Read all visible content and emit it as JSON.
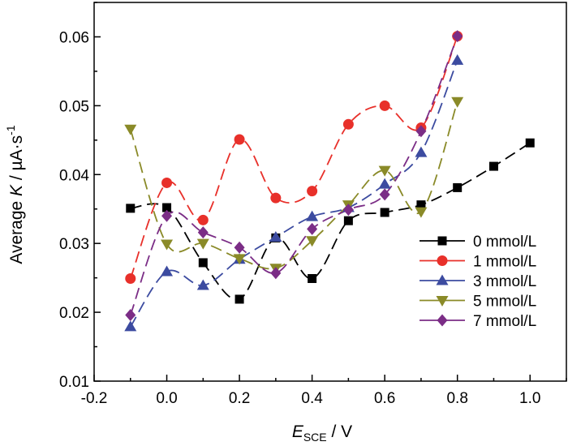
{
  "chart_data": {
    "type": "line",
    "xlabel": {
      "symbol": "E",
      "subscript": "SCE",
      "rest": " / V"
    },
    "ylabel": {
      "prefix": "Average ",
      "symbol": "K",
      "unit": " / µA·s",
      "sup": "-1"
    },
    "xlim": [
      -0.2,
      1.1
    ],
    "ylim": [
      0.01,
      0.065
    ],
    "xticks": [
      -0.2,
      0.0,
      0.2,
      0.4,
      0.6,
      0.8,
      1.0
    ],
    "xtick_labels": [
      "-0.2",
      "0.0",
      "0.2",
      "0.4",
      "0.6",
      "0.8",
      "1.0"
    ],
    "yticks": [
      0.01,
      0.02,
      0.03,
      0.04,
      0.05,
      0.06
    ],
    "ytick_labels": [
      "0.01",
      "0.02",
      "0.03",
      "0.04",
      "0.05",
      "0.06"
    ],
    "grid": false,
    "legend_position": "lower-right",
    "series": [
      {
        "name": "0 mmol/L",
        "color": "#000000",
        "marker": "square",
        "x": [
          -0.1,
          0.0,
          0.1,
          0.2,
          0.3,
          0.4,
          0.5,
          0.6,
          0.7,
          0.8,
          0.9,
          1.0
        ],
        "y": [
          0.0351,
          0.0352,
          0.0272,
          0.0219,
          0.0308,
          0.0249,
          0.0333,
          0.0345,
          0.0356,
          0.0381,
          0.0412,
          0.0446
        ]
      },
      {
        "name": "1 mmol/L",
        "color": "#e8302a",
        "marker": "circle",
        "x": [
          -0.1,
          0.0,
          0.1,
          0.2,
          0.3,
          0.4,
          0.5,
          0.6,
          0.7,
          0.8
        ],
        "y": [
          0.0249,
          0.0388,
          0.0334,
          0.0451,
          0.0366,
          0.0376,
          0.0473,
          0.05,
          0.0468,
          0.0601
        ]
      },
      {
        "name": "3 mmol/L",
        "color": "#3c4ba0",
        "marker": "triangle-up",
        "x": [
          -0.1,
          0.0,
          0.1,
          0.2,
          0.3,
          0.4,
          0.5,
          0.6,
          0.7,
          0.8
        ],
        "y": [
          0.0179,
          0.0259,
          0.0239,
          0.0277,
          0.0309,
          0.0339,
          0.0352,
          0.0386,
          0.0432,
          0.0566
        ]
      },
      {
        "name": "5 mmol/L",
        "color": "#8a8a28",
        "marker": "triangle-down",
        "x": [
          -0.1,
          0.0,
          0.1,
          0.2,
          0.3,
          0.4,
          0.5,
          0.6,
          0.7,
          0.8
        ],
        "y": [
          0.0466,
          0.0299,
          0.03,
          0.0278,
          0.0264,
          0.0304,
          0.0356,
          0.0406,
          0.0346,
          0.0506
        ]
      },
      {
        "name": "7 mmol/L",
        "color": "#7b2d86",
        "marker": "diamond",
        "x": [
          -0.1,
          0.0,
          0.1,
          0.2,
          0.3,
          0.4,
          0.5,
          0.6,
          0.7,
          0.8
        ],
        "y": [
          0.0196,
          0.034,
          0.0316,
          0.0294,
          0.0257,
          0.0321,
          0.0349,
          0.0371,
          0.0463,
          0.0601
        ]
      }
    ]
  }
}
